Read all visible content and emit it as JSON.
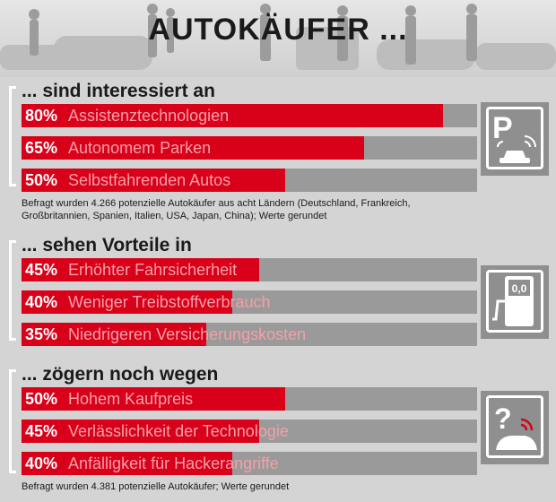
{
  "title": "AUTOKÄUFER ...",
  "chart_data": [
    {
      "type": "bar",
      "title": "... sind interessiert an",
      "categories": [
        "Assistenztechnologien",
        "Autonomem Parken",
        "Selbstfahrenden Autos"
      ],
      "values": [
        80,
        65,
        50
      ],
      "value_labels": [
        "80%",
        "65%",
        "50%"
      ],
      "xlim": [
        0,
        100
      ],
      "note": "Befragt wurden 4.266 potenzielle Autokäufer aus acht Ländern (Deutschland, Frankreich, Großbritannien, Spanien, Italien, USA, Japan, China); Werte gerundet",
      "icon": "parking-icon",
      "icon_text": "P"
    },
    {
      "type": "bar",
      "title": "... sehen Vorteile in",
      "categories": [
        "Erhöhter Fahrsicherheit",
        "Weniger Treibstoffverbrauch",
        "Niedrigeren Versicherungskosten"
      ],
      "values": [
        45,
        40,
        35
      ],
      "value_labels": [
        "45%",
        "40%",
        "35%"
      ],
      "xlim": [
        0,
        100
      ],
      "icon": "fuel-pump-icon",
      "icon_text": "0,0"
    },
    {
      "type": "bar",
      "title": "... zögern noch wegen",
      "categories": [
        "Hohem Kaufpreis",
        "Verlässlichkeit der Technologie",
        "Anfälligkeit für Hackerangriffe"
      ],
      "values": [
        50,
        45,
        40
      ],
      "value_labels": [
        "50%",
        "45%",
        "40%"
      ],
      "xlim": [
        0,
        100
      ],
      "note": "Befragt wurden 4.381 potenzielle Autokäufer; Werte gerundet",
      "icon": "question-car-icon",
      "icon_text": "?"
    }
  ],
  "colors": {
    "bar_fill": "#d9001a",
    "bar_track": "#9a9a9a",
    "background": "#d4d4d4"
  }
}
